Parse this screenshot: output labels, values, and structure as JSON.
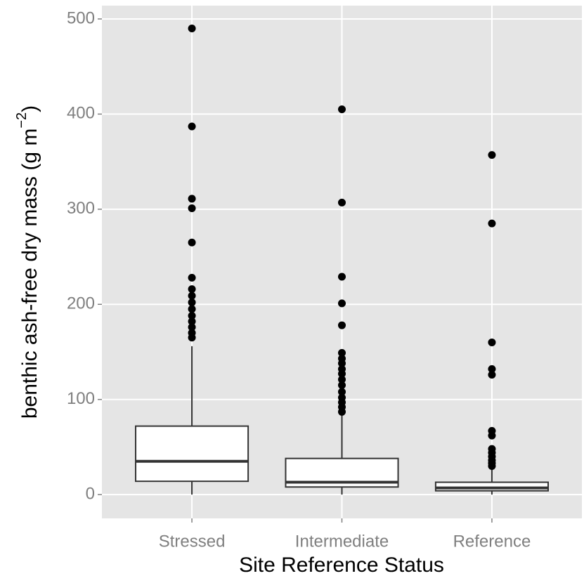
{
  "chart_data": {
    "type": "box",
    "x_label": "Site Reference Status",
    "y_label": [
      "benthic ash-free dry mass (g m",
      "−2",
      ")"
    ],
    "categories": [
      "Stressed",
      "Intermediate",
      "Reference"
    ],
    "boxes": [
      {
        "whislo": 0,
        "q1": 14,
        "med": 35,
        "q3": 72,
        "whishi": 156,
        "fliers": [
          490,
          387,
          311,
          301,
          265,
          228,
          216,
          209,
          202,
          195,
          188,
          182,
          176,
          170,
          165
        ]
      },
      {
        "whislo": 0,
        "q1": 8,
        "med": 13,
        "q3": 38,
        "whishi": 84,
        "fliers": [
          405,
          307,
          229,
          201,
          178,
          149,
          143,
          138,
          132,
          127,
          121,
          115,
          108,
          102,
          97,
          92,
          87
        ]
      },
      {
        "whislo": 0,
        "q1": 4,
        "med": 7,
        "q3": 13,
        "whishi": 27,
        "fliers": [
          357,
          285,
          160,
          132,
          126,
          67,
          62,
          48,
          44,
          40,
          36,
          33,
          30
        ]
      }
    ],
    "ylim": [
      -25,
      514
    ],
    "yticks": [
      0,
      100,
      200,
      300,
      400,
      500
    ],
    "grid": true
  }
}
